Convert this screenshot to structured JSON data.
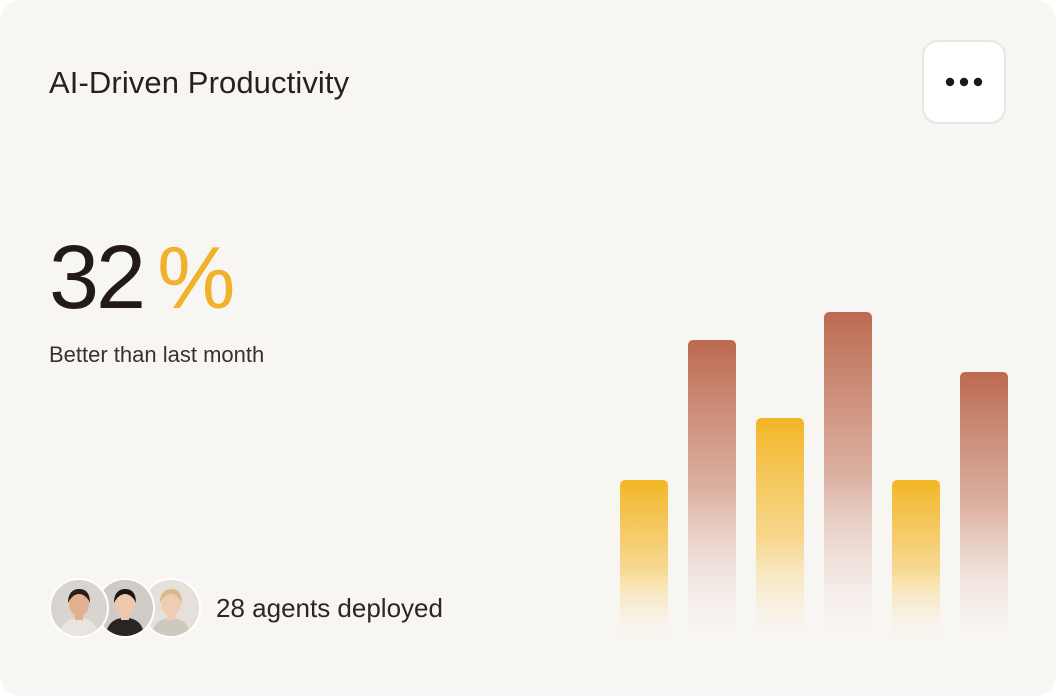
{
  "card": {
    "title": "AI-Driven Productivity",
    "menu_icon": "more-horizontal-icon"
  },
  "metric": {
    "value": "32",
    "unit": "%",
    "subtitle": "Better than last month"
  },
  "agents": {
    "avatars": [
      {
        "name": "avatar-man",
        "skin": "#e2b08f",
        "hair": "#2b1d16",
        "shirt": "#e9e4dd",
        "bg": "#d8d4cf"
      },
      {
        "name": "avatar-woman-dark-hair",
        "skin": "#edc8ad",
        "hair": "#1c1513",
        "shirt": "#2a2422",
        "bg": "#cfcbc6"
      },
      {
        "name": "avatar-woman-blonde",
        "skin": "#efcdb3",
        "hair": "#d9b98a",
        "shirt": "#cfc8bf",
        "bg": "#e5e0da"
      }
    ],
    "label": "28 agents deployed"
  },
  "colors": {
    "accent_yellow": "#f0b22a",
    "accent_terracotta": "#bb6a4f",
    "background": "#f8f6f3"
  },
  "chart_data": {
    "type": "bar",
    "values": [
      160,
      300,
      222,
      328,
      160,
      268
    ],
    "colors": [
      "yellow",
      "terracotta",
      "yellow",
      "terracotta",
      "yellow",
      "terracotta"
    ],
    "ylim": [
      0,
      330
    ]
  }
}
